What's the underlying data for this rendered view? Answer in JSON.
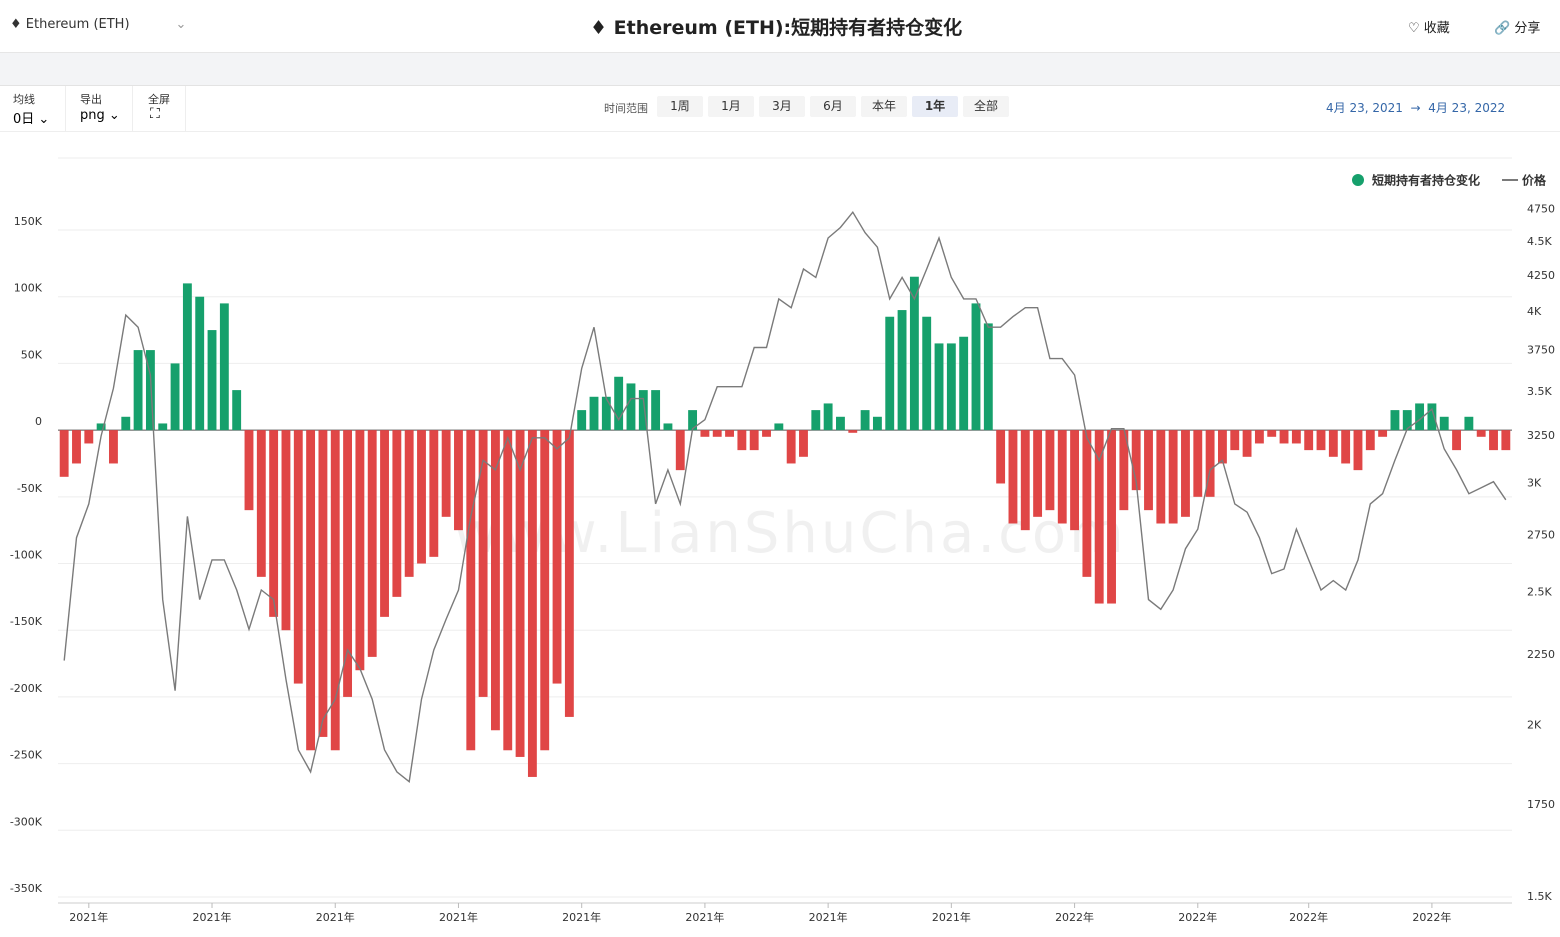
{
  "header": {
    "asset_selector": "Ethereum (ETH)",
    "title": "Ethereum (ETH):短期持有者持仓变化",
    "favorite": "收藏",
    "share": "分享"
  },
  "toolbar": {
    "ma_label": "均线",
    "ma_value": "0日",
    "export_label": "导出",
    "export_value": "png",
    "fullscreen_label": "全屏",
    "range_label": "时间范围",
    "ranges": [
      "1周",
      "1月",
      "3月",
      "6月",
      "本年",
      "1年",
      "全部"
    ],
    "active_range": "1年",
    "date_start": "4月 23, 2021",
    "date_arrow": "→",
    "date_end": "4月 23, 2022"
  },
  "watermark": "www.LianShuCha.com",
  "chart_data": {
    "type": "bar",
    "categories": [
      null,
      null,
      "2021年",
      null,
      null,
      null,
      null,
      null,
      null,
      null,
      null,
      null,
      "2021年",
      null,
      null,
      null,
      null,
      null,
      null,
      null,
      null,
      null,
      "2021年",
      null,
      null,
      null,
      null,
      null,
      null,
      null,
      null,
      null,
      "2021年",
      null,
      null,
      null,
      null,
      null,
      null,
      null,
      null,
      null,
      "2021年",
      null,
      null,
      null,
      null,
      null,
      null,
      null,
      null,
      null,
      "2021年",
      null,
      null,
      null,
      null,
      null,
      null,
      null,
      null,
      null,
      "2021年",
      null,
      null,
      null,
      null,
      null,
      null,
      null,
      null,
      null,
      "2021年",
      null,
      null,
      null,
      null,
      null,
      null,
      null,
      null,
      null,
      "2022年",
      null,
      null,
      null,
      null,
      null,
      null,
      null,
      null,
      null,
      "2022年",
      null,
      null,
      null,
      null,
      null,
      null,
      null,
      null,
      "2022年",
      null,
      null,
      null,
      null,
      null,
      null,
      null,
      null,
      null,
      "2022年",
      null,
      null,
      null,
      null,
      null,
      null
    ],
    "series": [
      {
        "name": "短期持有者持仓变化",
        "color": "#16a06c",
        "negative_color": "#e04646",
        "values": [
          -35000,
          -25000,
          -10000,
          5000,
          -25000,
          10000,
          60000,
          60000,
          5000,
          50000,
          110000,
          100000,
          75000,
          95000,
          30000,
          -60000,
          -110000,
          -140000,
          -150000,
          -190000,
          -240000,
          -230000,
          -240000,
          -200000,
          -180000,
          -170000,
          -140000,
          -125000,
          -110000,
          -100000,
          -95000,
          -65000,
          -75000,
          -240000,
          -200000,
          -225000,
          -240000,
          -245000,
          -260000,
          -240000,
          -190000,
          -215000,
          15000,
          25000,
          25000,
          40000,
          35000,
          30000,
          30000,
          5000,
          -30000,
          15000,
          -5000,
          -5000,
          -5000,
          -15000,
          -15000,
          -5000,
          5000,
          -25000,
          -20000,
          15000,
          20000,
          10000,
          -2000,
          15000,
          10000,
          85000,
          90000,
          115000,
          85000,
          65000,
          65000,
          70000,
          95000,
          80000,
          -40000,
          -70000,
          -75000,
          -65000,
          -60000,
          -70000,
          -75000,
          -110000,
          -130000,
          -130000,
          -60000,
          -45000,
          -60000,
          -70000,
          -70000,
          -65000,
          -50000,
          -50000,
          -25000,
          -15000,
          -20000,
          -10000,
          -5000,
          -10000,
          -10000,
          -15000,
          -15000,
          -20000,
          -25000,
          -30000,
          -15000,
          -5000,
          15000,
          15000,
          20000,
          20000,
          10000,
          -15000,
          10000,
          -5000,
          -15000,
          -15000
        ]
      },
      {
        "name": "价格",
        "type": "line",
        "axis": "y2",
        "color": "#7a7a7a",
        "values": [
          2230,
          2740,
          2900,
          3250,
          3520,
          3980,
          3900,
          3600,
          2470,
          2120,
          2840,
          2470,
          2640,
          2640,
          2510,
          2350,
          2510,
          2470,
          2160,
          1920,
          1850,
          2020,
          2090,
          2270,
          2200,
          2090,
          1920,
          1850,
          1820,
          2090,
          2270,
          2390,
          2510,
          2840,
          3120,
          3070,
          3240,
          3070,
          3240,
          3240,
          3180,
          3240,
          3640,
          3900,
          3460,
          3340,
          3460,
          3460,
          2900,
          3070,
          2900,
          3290,
          3340,
          3530,
          3530,
          3530,
          3770,
          3770,
          4090,
          4030,
          4300,
          4240,
          4530,
          4610,
          4730,
          4570,
          4460,
          4090,
          4240,
          4090,
          4300,
          4530,
          4240,
          4090,
          4090,
          3900,
          3900,
          3970,
          4030,
          4030,
          3700,
          3700,
          3600,
          3240,
          3120,
          3290,
          3290,
          3010,
          2470,
          2430,
          2510,
          2690,
          2780,
          3070,
          3120,
          2900,
          2860,
          2740,
          2580,
          2600,
          2780,
          2640,
          2510,
          2550,
          2510,
          2640,
          2900,
          2950,
          3120,
          3290,
          3340,
          3400,
          3180,
          3070,
          2950,
          2980,
          3010,
          2920
        ]
      }
    ],
    "ylim": [
      -350000,
      204000
    ],
    "yticks": [
      {
        "value": -350000,
        "label": "-350K"
      },
      {
        "value": -300000,
        "label": "-300K"
      },
      {
        "value": -250000,
        "label": "-250K"
      },
      {
        "value": -200000,
        "label": "-200K"
      },
      {
        "value": -150000,
        "label": "-150K"
      },
      {
        "value": -100000,
        "label": "-100K"
      },
      {
        "value": -50000,
        "label": "-50K"
      },
      0,
      {
        "value": 50000,
        "label": "50K"
      },
      {
        "value": 100000,
        "label": "100K"
      },
      {
        "value": 150000,
        "label": "150K"
      }
    ],
    "y2lim": [
      1500,
      5180
    ],
    "y2_log": true,
    "y2ticks": [
      1750,
      {
        "value": 1500,
        "label": "1.5K"
      },
      {
        "value": 2000,
        "label": "2K"
      },
      2250,
      {
        "value": 2500,
        "label": "2.5K"
      },
      2750,
      {
        "value": 3000,
        "label": "3K"
      },
      3250,
      {
        "value": 3500,
        "label": "3.5K"
      },
      3750,
      {
        "value": 4000,
        "label": "4K"
      },
      4250,
      {
        "value": 4500,
        "label": "4.5K"
      },
      4750
    ],
    "grid": true,
    "legend": "top-right"
  }
}
